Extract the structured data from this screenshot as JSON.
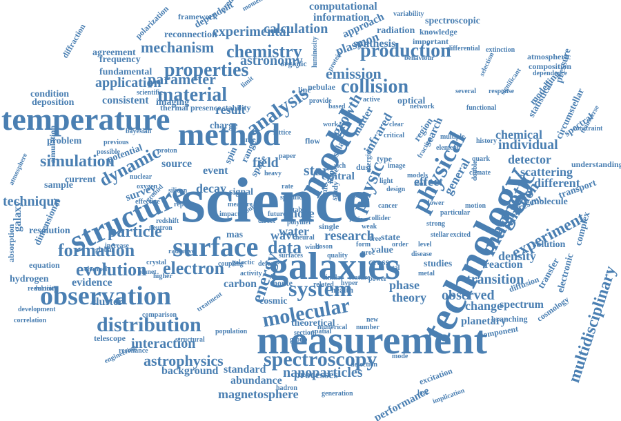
{
  "word_cloud": {
    "color": "#4a7fb2",
    "words": [
      "science",
      "technology",
      "measurement",
      "galaxies",
      "model",
      "structure",
      "temperature",
      "method",
      "surface",
      "observation",
      "physical",
      "magnetic",
      "analysis",
      "molecular",
      "distribution",
      "system",
      "spectroscopy",
      "properties",
      "material",
      "production",
      "collision",
      "chemistry",
      "formation",
      "evolution",
      "electron",
      "physic",
      "data",
      "energy",
      "multidisciplinary",
      "simulation",
      "dynamic",
      "particle",
      "astrophysics",
      "interaction",
      "experiment",
      "function",
      "star",
      "field",
      "transition",
      "emission",
      "parameter",
      "mechanism",
      "application",
      "technique",
      "individual",
      "detector",
      "density",
      "scattering",
      "chemical",
      "different",
      "observed",
      "theory",
      "effect",
      "phase",
      "change",
      "spectrum",
      "planetary",
      "nanoparticles",
      "magnetosphere",
      "abundance",
      "background",
      "standard",
      "processes",
      "performance",
      "result",
      "decay",
      "event",
      "source",
      "survey",
      "cluster",
      "carbon",
      "evidence",
      "reaction",
      "solution",
      "molecule",
      "transport",
      "astronomy",
      "calculation",
      "experimental",
      "information",
      "computational",
      "plasmon",
      "synthesis",
      "approach",
      "radiation",
      "spectroscopic",
      "knowledge",
      "important",
      "optical",
      "studies",
      "current",
      "sample",
      "potential",
      "simulation",
      "galaxy",
      "resolution",
      "dimensional",
      "hydrogen",
      "equation",
      "absorption",
      "reduction",
      "development",
      "correlation",
      "telescope",
      "engineering",
      "resonance",
      "structural",
      "population",
      "comparison",
      "treatment",
      "coupling",
      "galactic",
      "cosmic",
      "health",
      "section",
      "number",
      "numerical",
      "theoretical",
      "detection",
      "hadron",
      "generation",
      "excitation",
      "implication",
      "component",
      "branching",
      "cosmology",
      "transfer",
      "diffusion",
      "electronic",
      "complex",
      "understanding",
      "circumstellar",
      "spectral",
      "statistical",
      "modelling",
      "pressure",
      "atmospheric",
      "composition",
      "dependence",
      "extinction",
      "differential",
      "variability",
      "framework",
      "reconnection",
      "dependent",
      "prediction",
      "momentum",
      "agreement",
      "polarization",
      "frequency",
      "diffraction",
      "fundamental",
      "condition",
      "deposition",
      "consistent",
      "problem",
      "imaging",
      "thermal",
      "presence",
      "stability",
      "organic",
      "luminosity",
      "protein",
      "nebulae",
      "growth",
      "matter",
      "infrared",
      "region",
      "search",
      "general",
      "present",
      "research",
      "water",
      "single",
      "wave",
      "mas",
      "more",
      "cross",
      "value",
      "state",
      "order",
      "level",
      "stellar",
      "strong",
      "disease",
      "related",
      "similar",
      "feature",
      "power",
      "crystal",
      "higher",
      "global",
      "neutron",
      "redshift",
      "radiative",
      "activity",
      "defect",
      "monte",
      "central",
      "signal",
      "charge",
      "time",
      "spin",
      "range",
      "line",
      "solar",
      "space",
      "atomic",
      "study",
      "scale",
      "dust",
      "light",
      "type",
      "climate",
      "quark",
      "image",
      "design",
      "motion",
      "network",
      "element",
      "multiple",
      "fraction",
      "history",
      "constraint",
      "transverse",
      "functional",
      "bayesian",
      "scientific",
      "previous",
      "possible",
      "nuclear",
      "oxygen",
      "proton",
      "effective",
      "silicon",
      "report",
      "ground",
      "atmosphere",
      "velocity",
      "increase",
      "channel",
      "planet",
      "spatial",
      "group",
      "several",
      "behaviour",
      "selection",
      "significant",
      "response",
      "particular",
      "collider",
      "cancer",
      "rate",
      "map",
      "flow",
      "rich",
      "active",
      "based",
      "lattice",
      "provide",
      "measure",
      "impact",
      "specific",
      "future",
      "direct",
      "control",
      "weak",
      "ratio",
      "free",
      "form",
      "proc",
      "total",
      "metal",
      "double",
      "clear",
      "critical",
      "energies",
      "models",
      "tool",
      "limit",
      "work",
      "surfaces",
      "quality",
      "wind",
      "neural",
      "polymer",
      "lower",
      "excited",
      "paper",
      "heavy",
      "stable",
      "boson",
      "hyper",
      "new",
      "mode",
      "loss"
    ]
  }
}
